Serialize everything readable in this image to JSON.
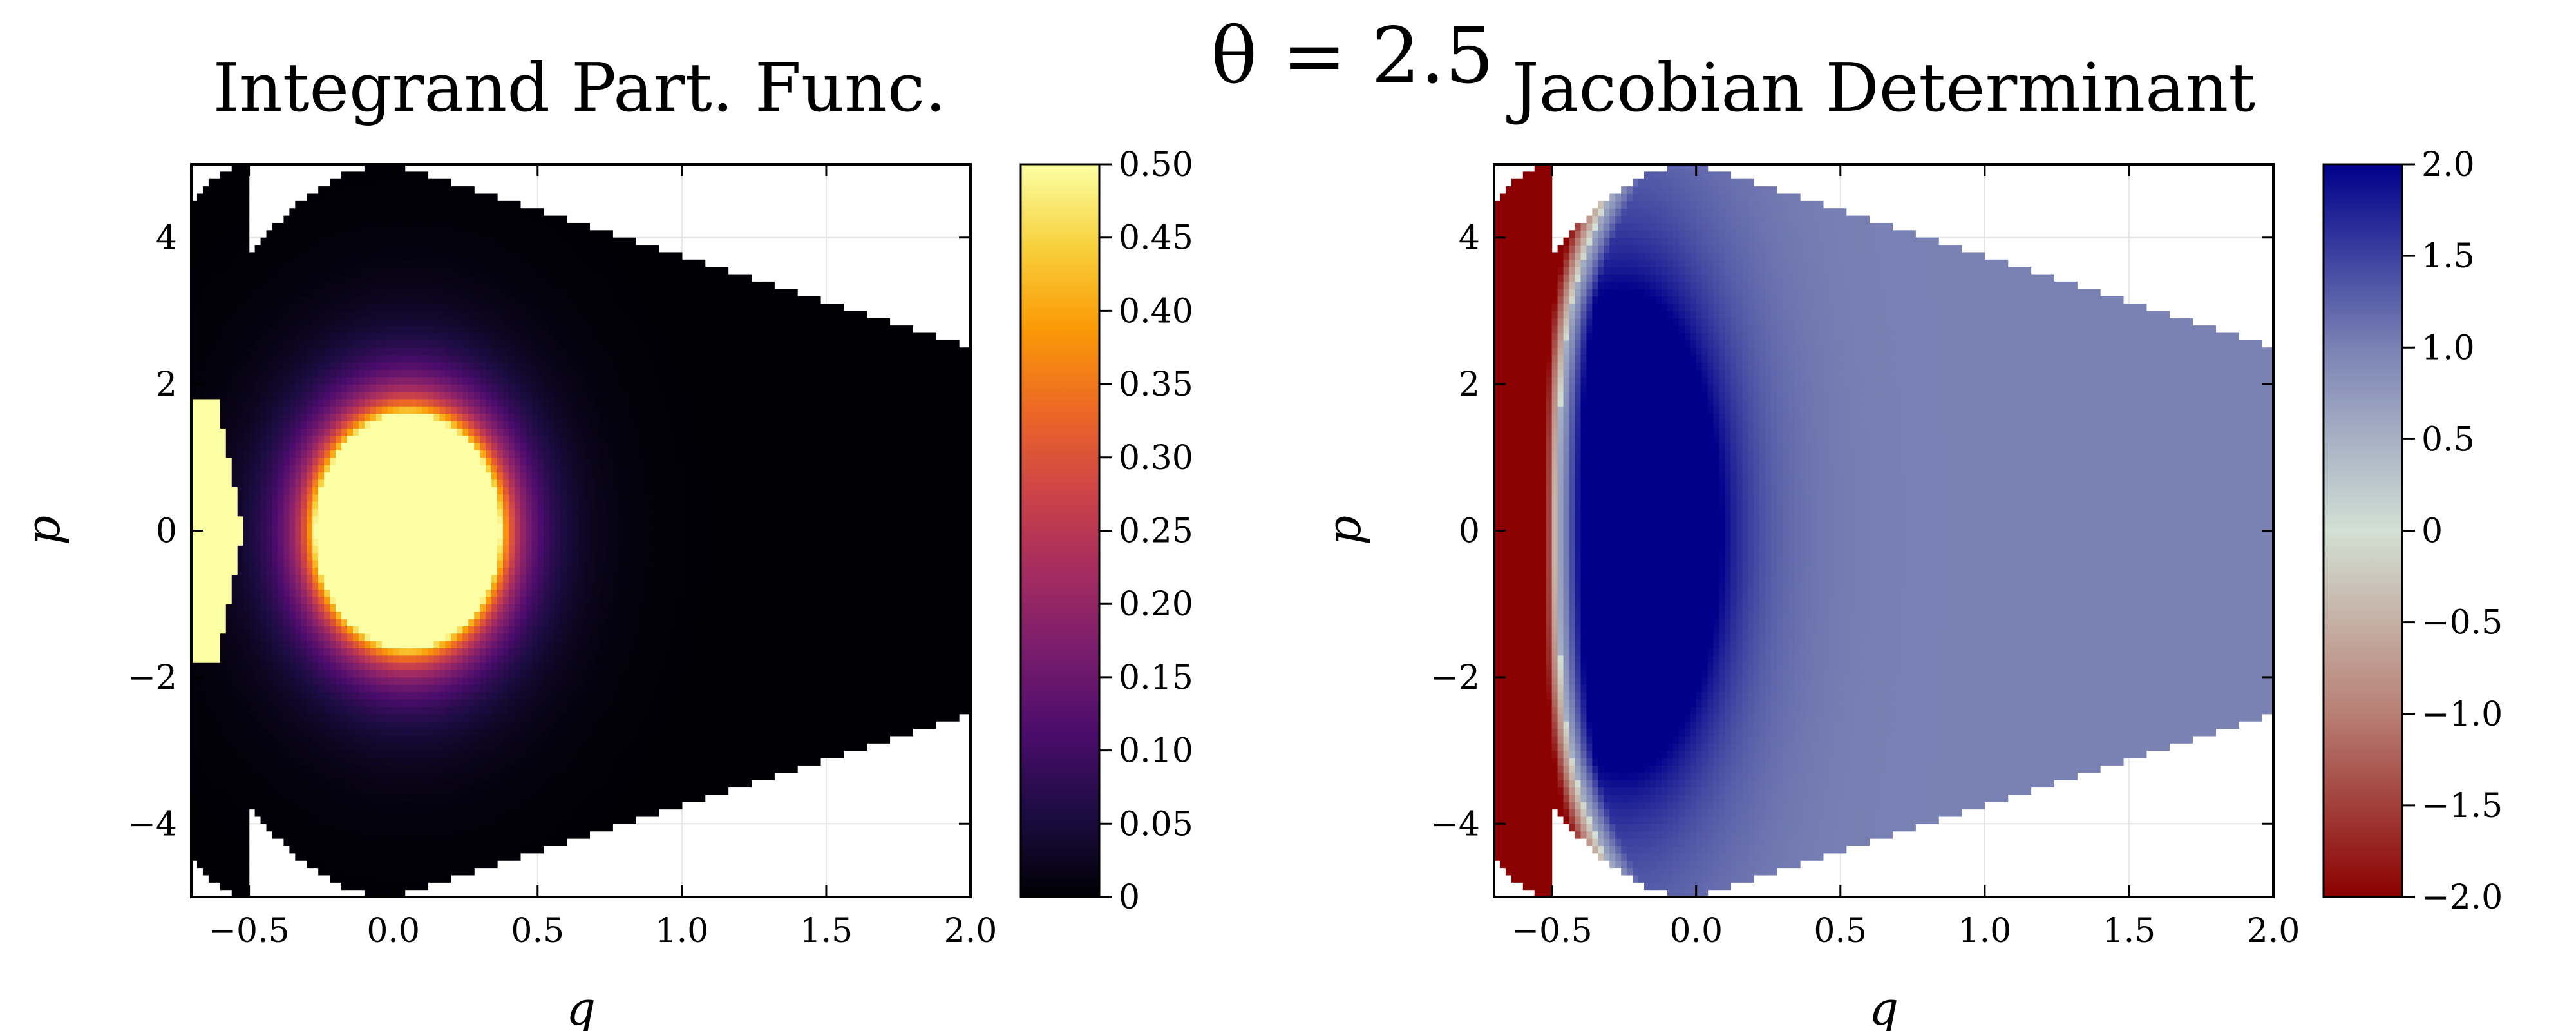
{
  "figure": {
    "suptitle": "θ = 2.5"
  },
  "chart_data": [
    {
      "type": "heatmap",
      "title": "Integrand Part. Func.",
      "xlabel": "q",
      "ylabel": "p",
      "xlim": [
        -0.7,
        2.0
      ],
      "ylim": [
        -5,
        5
      ],
      "grid": true,
      "x_ticks": [
        "−0.5",
        "0.0",
        "0.5",
        "1.0",
        "1.5",
        "2.0"
      ],
      "x_tick_values": [
        -0.5,
        0.0,
        0.5,
        1.0,
        1.5,
        2.0
      ],
      "y_ticks": [
        "4",
        "2",
        "0",
        "−2",
        "−4"
      ],
      "y_tick_values": [
        4,
        2,
        0,
        -2,
        -4
      ],
      "colorbar": {
        "colormap": "inferno",
        "range": [
          0,
          0.5
        ],
        "ticks": [
          "0.50",
          "0.45",
          "0.40",
          "0.35",
          "0.30",
          "0.25",
          "0.20",
          "0.15",
          "0.10",
          "0.05",
          "0"
        ],
        "tick_values": [
          0.5,
          0.45,
          0.4,
          0.35,
          0.3,
          0.25,
          0.2,
          0.15,
          0.1,
          0.05,
          0
        ],
        "colors": [
          "#000004",
          "#1b0c41",
          "#4a0c6b",
          "#781c6d",
          "#a52c60",
          "#cf4446",
          "#ed6925",
          "#fb9b06",
          "#f7d13d",
          "#fcffa4"
        ]
      },
      "features": {
        "peak_center": [
          0.05,
          0.0
        ],
        "peak_value": 0.5,
        "saturated_region_left": "q < -0.5, |p| < 1.8"
      }
    },
    {
      "type": "heatmap",
      "title": "Jacobian Determinant",
      "xlabel": "q",
      "ylabel": "p",
      "xlim": [
        -0.7,
        2.0
      ],
      "ylim": [
        -5,
        5
      ],
      "grid": true,
      "x_ticks": [
        "−0.5",
        "0.0",
        "0.5",
        "1.0",
        "1.5",
        "2.0"
      ],
      "x_tick_values": [
        -0.5,
        0.0,
        0.5,
        1.0,
        1.5,
        2.0
      ],
      "y_ticks": [
        "4",
        "2",
        "0",
        "−2",
        "−4"
      ],
      "y_tick_values": [
        4,
        2,
        0,
        -2,
        -4
      ],
      "colorbar": {
        "colormap": "diverging red-white-blue",
        "range": [
          -2,
          2
        ],
        "ticks": [
          "2.0",
          "1.5",
          "1.0",
          "0.5",
          "0",
          "−0.5",
          "−1.0",
          "−1.5",
          "−2.0"
        ],
        "tick_values": [
          2.0,
          1.5,
          1.0,
          0.5,
          0,
          -0.5,
          -1.0,
          -1.5,
          -2.0
        ],
        "colors": [
          "#8b0000",
          "#b87f75",
          "#d3e0d4",
          "#7a82b4",
          "#00008b"
        ]
      },
      "features": {
        "far_field_value": 1.0,
        "saturated_positive_center": [
          -0.25,
          0.0
        ],
        "saturated_negative_edge": "q < -0.5"
      }
    }
  ]
}
